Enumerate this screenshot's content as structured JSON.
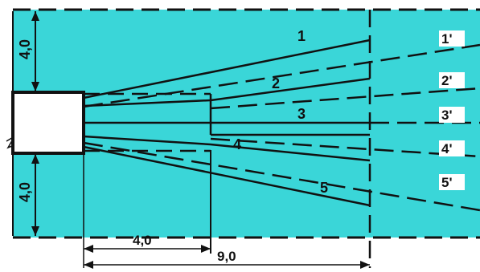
{
  "colors": {
    "background_field": "#3ad6d8",
    "lines": "#111111",
    "box_fill": "#ffffff"
  },
  "dimensions": {
    "top_vertical": "4,0",
    "bottom_vertical": "4,0",
    "opening": "a",
    "horizontal_short": "4,0",
    "horizontal_long": "9,0"
  },
  "lines": {
    "solid": [
      "1",
      "2",
      "3",
      "4",
      "5"
    ],
    "dashed": [
      "1'",
      "2'",
      "3'",
      "4'",
      "5'"
    ]
  }
}
